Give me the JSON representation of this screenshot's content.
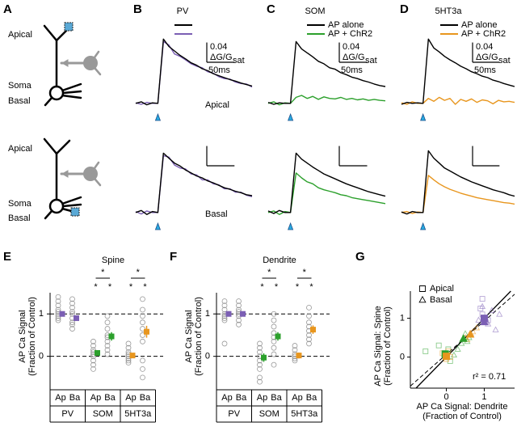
{
  "panel_labels": [
    "A",
    "B",
    "C",
    "D",
    "E",
    "F",
    "G"
  ],
  "schematic": {
    "labels": [
      "Apical",
      "Soma",
      "Basal",
      "Apical",
      "Soma",
      "Basal"
    ]
  },
  "chart_data": [
    {
      "type": "line",
      "title": "PV",
      "region_label": "Apical",
      "stimulus": 0,
      "xlim": [
        -40,
        170
      ],
      "ylim": [
        -0.02,
        0.16
      ],
      "x": [
        -40,
        -30,
        -20,
        -10,
        0,
        10,
        20,
        30,
        40,
        50,
        60,
        70,
        80,
        90,
        100,
        110,
        120,
        130,
        140,
        150,
        160,
        170
      ],
      "series": [
        {
          "color": "#000000",
          "values": [
            0,
            0.003,
            -0.003,
            0.001,
            0,
            0.13,
            0.115,
            0.106,
            0.097,
            0.09,
            0.082,
            0.077,
            0.07,
            0.066,
            0.06,
            0.056,
            0.052,
            0.048,
            0.045,
            0.041,
            0.038,
            0.035
          ]
        },
        {
          "color": "#7b5fb4",
          "values": [
            0.001,
            -0.002,
            0.002,
            0,
            0,
            0.125,
            0.118,
            0.1,
            0.095,
            0.088,
            0.08,
            0.075,
            0.072,
            0.064,
            0.061,
            0.054,
            0.05,
            0.049,
            0.043,
            0.04,
            0.039,
            0.033
          ]
        }
      ],
      "scalebar": {
        "y": {
          "value": 0.04,
          "label": "0.04"
        },
        "x": {
          "value": 50,
          "label": "50ms"
        },
        "unit": "ΔG/G",
        "unit_sub": "sat"
      }
    },
    {
      "type": "line",
      "region_label": "Basal",
      "stimulus": 0,
      "xlim": [
        -40,
        170
      ],
      "ylim": [
        -0.02,
        0.16
      ],
      "x": [
        -40,
        -30,
        -20,
        -10,
        0,
        10,
        20,
        30,
        40,
        50,
        60,
        70,
        80,
        90,
        100,
        110,
        120,
        130,
        140,
        150,
        160,
        170
      ],
      "series": [
        {
          "color": "#000000",
          "values": [
            0,
            0.004,
            -0.004,
            0.002,
            0,
            0.12,
            0.11,
            0.1,
            0.094,
            0.086,
            0.08,
            0.074,
            0.07,
            0.064,
            0.06,
            0.055,
            0.05,
            0.047,
            0.043,
            0.04,
            0.036,
            0.034
          ]
        },
        {
          "color": "#7b5fb4",
          "values": [
            0.002,
            -0.003,
            0.003,
            0,
            0,
            0.115,
            0.112,
            0.096,
            0.09,
            0.088,
            0.078,
            0.076,
            0.066,
            0.066,
            0.058,
            0.056,
            0.048,
            0.048,
            0.041,
            0.041,
            0.035,
            0.032
          ]
        }
      ],
      "scalebar": {
        "y": 0.04,
        "x": 50
      }
    },
    {
      "type": "line",
      "title": "SOM",
      "stimulus": 0,
      "xlim": [
        -40,
        170
      ],
      "ylim": [
        -0.02,
        0.16
      ],
      "x": [
        -40,
        -30,
        -20,
        -10,
        0,
        10,
        20,
        30,
        40,
        50,
        60,
        70,
        80,
        90,
        100,
        110,
        120,
        130,
        140,
        150,
        160,
        170
      ],
      "series": [
        {
          "name": "AP alone",
          "color": "#000000",
          "values": [
            0.002,
            -0.002,
            0.001,
            0,
            0,
            0.125,
            0.11,
            0.102,
            0.094,
            0.085,
            0.08,
            0.072,
            0.069,
            0.062,
            0.058,
            0.053,
            0.05,
            0.046,
            0.043,
            0.039,
            0.036,
            0.034
          ]
        },
        {
          "name": "AP + ChR2",
          "color": "#2ca02c",
          "values": [
            0,
            0.003,
            -0.003,
            0.001,
            0,
            0.012,
            0.016,
            0.01,
            0.014,
            0.008,
            0.013,
            0.01,
            0.009,
            0.012,
            0.008,
            0.01,
            0.007,
            0.009,
            0.006,
            0.008,
            0.006,
            0.005
          ]
        }
      ],
      "scalebar": {
        "y": {
          "value": 0.04,
          "label": "0.04"
        },
        "x": {
          "value": 50,
          "label": "50ms"
        },
        "unit": "ΔG/G",
        "unit_sub": "sat"
      }
    },
    {
      "type": "line",
      "stimulus": 0,
      "xlim": [
        -40,
        170
      ],
      "ylim": [
        -0.02,
        0.16
      ],
      "x": [
        -40,
        -30,
        -20,
        -10,
        0,
        10,
        20,
        30,
        40,
        50,
        60,
        70,
        80,
        90,
        100,
        110,
        120,
        130,
        140,
        150,
        160,
        170
      ],
      "series": [
        {
          "color": "#000000",
          "values": [
            0.003,
            -0.002,
            0.004,
            0,
            0,
            0.12,
            0.108,
            0.1,
            0.092,
            0.085,
            0.078,
            0.073,
            0.068,
            0.063,
            0.058,
            0.054,
            0.05,
            0.046,
            0.042,
            0.039,
            0.036,
            0.033
          ]
        },
        {
          "color": "#2ca02c",
          "values": [
            0,
            0.003,
            -0.004,
            0.002,
            0,
            0.08,
            0.07,
            0.062,
            0.058,
            0.05,
            0.046,
            0.043,
            0.04,
            0.036,
            0.034,
            0.03,
            0.028,
            0.026,
            0.024,
            0.022,
            0.02,
            0.018
          ]
        }
      ],
      "scalebar": {
        "y": 0.04,
        "x": 50
      }
    },
    {
      "type": "line",
      "title": "5HT3a",
      "stimulus": 0,
      "xlim": [
        -40,
        170
      ],
      "ylim": [
        -0.02,
        0.16
      ],
      "x": [
        -40,
        -30,
        -20,
        -10,
        0,
        10,
        20,
        30,
        40,
        50,
        60,
        70,
        80,
        90,
        100,
        110,
        120,
        130,
        140,
        150,
        160,
        170
      ],
      "series": [
        {
          "name": "AP alone",
          "color": "#000000",
          "values": [
            -0.002,
            0.002,
            0,
            0.001,
            0,
            0.13,
            0.112,
            0.104,
            0.095,
            0.088,
            0.082,
            0.075,
            0.07,
            0.064,
            0.06,
            0.055,
            0.052,
            0.047,
            0.044,
            0.04,
            0.037,
            0.034
          ]
        },
        {
          "name": "AP + ChR2",
          "color": "#e8961e",
          "values": [
            0.001,
            -0.002,
            0.003,
            0,
            0,
            0.01,
            0.004,
            0.012,
            0.006,
            0.01,
            -0.002,
            0.008,
            0.004,
            0.009,
            0.002,
            0.007,
            0.005,
            -0.001,
            0.006,
            0.003,
            0.004,
            0.002
          ]
        }
      ],
      "scalebar": {
        "y": {
          "value": 0.04,
          "label": "0.04"
        },
        "x": {
          "value": 50,
          "label": "50ms"
        },
        "unit": "ΔG/G",
        "unit_sub": "sat"
      }
    },
    {
      "type": "line",
      "stimulus": 0,
      "xlim": [
        -40,
        170
      ],
      "ylim": [
        -0.02,
        0.16
      ],
      "x": [
        -40,
        -30,
        -20,
        -10,
        0,
        10,
        20,
        30,
        40,
        50,
        60,
        70,
        80,
        90,
        100,
        110,
        120,
        130,
        140,
        150,
        160,
        170
      ],
      "series": [
        {
          "color": "#000000",
          "values": [
            0.001,
            -0.003,
            0.002,
            0,
            0,
            0.125,
            0.11,
            0.1,
            0.09,
            0.084,
            0.078,
            0.072,
            0.067,
            0.062,
            0.058,
            0.054,
            0.05,
            0.046,
            0.043,
            0.04,
            0.036,
            0.033
          ]
        },
        {
          "color": "#e8961e",
          "values": [
            0,
            0.002,
            -0.002,
            0.001,
            0,
            0.075,
            0.066,
            0.058,
            0.052,
            0.047,
            0.043,
            0.039,
            0.036,
            0.033,
            0.03,
            0.028,
            0.026,
            0.024,
            0.022,
            0.02,
            0.019,
            0.017
          ]
        }
      ],
      "scalebar": {
        "y": 0.04,
        "x": 50
      }
    },
    {
      "type": "strip",
      "title": "Spine",
      "ylabel": [
        "AP Ca Signal",
        "(Fraction of Control)"
      ],
      "ylim": [
        -0.75,
        1.5
      ],
      "yticks": [
        0,
        1
      ],
      "categories": [
        "Ap",
        "Ba",
        "Ap",
        "Ba",
        "Ap",
        "Ba"
      ],
      "groups": [
        "PV",
        "SOM",
        "5HT3a"
      ],
      "group_colors": [
        "#7b5fb4",
        "#2ca02c",
        "#e8961e"
      ],
      "values": [
        1.0,
        0.9,
        0.08,
        0.47,
        0.02,
        0.58
      ],
      "errors": [
        0.06,
        0.06,
        0.06,
        0.1,
        0.05,
        0.14
      ],
      "points": [
        [
          1.4,
          1.3,
          1.2,
          1.1,
          1.05,
          1.0,
          0.95,
          0.9,
          0.85
        ],
        [
          1.35,
          1.25,
          1.15,
          1.05,
          1.0,
          0.9,
          0.8,
          0.75,
          0.65
        ],
        [
          0.35,
          0.25,
          0.15,
          0.1,
          0.05,
          0,
          -0.1,
          -0.2,
          -0.3
        ],
        [
          0.95,
          0.8,
          0.65,
          0.5,
          0.45,
          0.35,
          0.25,
          0.15,
          0.05
        ],
        [
          0.3,
          0.2,
          0.1,
          0.05,
          0,
          -0.05,
          -0.1,
          -0.15
        ],
        [
          1.35,
          1.1,
          0.95,
          0.8,
          0.65,
          0.5,
          0.35,
          -0.1,
          -0.3,
          -0.5
        ]
      ],
      "significance": {
        "pairs": [
          "*",
          "*"
        ],
        "each": [
          "*",
          "*",
          "*",
          "*"
        ]
      }
    },
    {
      "type": "strip",
      "title": "Dendrite",
      "ylabel": [
        "AP Ca Signal",
        "(Fraction of Control)"
      ],
      "ylim": [
        -0.75,
        1.5
      ],
      "yticks": [
        0,
        1
      ],
      "categories": [
        "Ap",
        "Ba",
        "Ap",
        "Ba",
        "Ap",
        "Ba"
      ],
      "groups": [
        "PV",
        "SOM",
        "5HT3a"
      ],
      "group_colors": [
        "#7b5fb4",
        "#2ca02c",
        "#e8961e"
      ],
      "values": [
        1.0,
        1.0,
        -0.03,
        0.47,
        0.02,
        0.63
      ],
      "errors": [
        0.05,
        0.05,
        0.1,
        0.1,
        0.07,
        0.1
      ],
      "points": [
        [
          1.3,
          1.2,
          1.1,
          1.0,
          0.95,
          0.9,
          0.85,
          0.3
        ],
        [
          1.3,
          1.2,
          1.1,
          1.05,
          1.0,
          0.95,
          0.85,
          0.75
        ],
        [
          0.3,
          0.2,
          0.1,
          0,
          -0.1,
          -0.2,
          -0.3,
          -0.5,
          -0.6
        ],
        [
          1.0,
          0.85,
          0.7,
          0.55,
          0.45,
          0.35,
          0.2,
          0.05,
          -0.2
        ],
        [
          0.25,
          0.15,
          0.05,
          0,
          -0.05,
          -0.1
        ],
        [
          1.15,
          0.95,
          0.8,
          0.7,
          0.6,
          0.5,
          0.4,
          0.3
        ]
      ],
      "significance": {
        "pairs": [
          "*",
          "*"
        ],
        "each": [
          "*",
          "*",
          "*",
          "*"
        ]
      }
    },
    {
      "type": "scatter",
      "xlabel": [
        "AP Ca Signal: Dendrite",
        "(Fraction of Control)"
      ],
      "ylabel": [
        "AP Ca Signal: Spine",
        "(Fraction of Control)"
      ],
      "xlim": [
        -0.95,
        1.8
      ],
      "ylim": [
        -0.8,
        1.7
      ],
      "xticks": [
        0,
        1
      ],
      "yticks": [
        0,
        1
      ],
      "legend": [
        {
          "label": "Apical",
          "marker": "square"
        },
        {
          "label": "Basal",
          "marker": "triangle"
        }
      ],
      "annotation": "r² = 0.71",
      "fit": {
        "slope": 0.86,
        "intercept": 0.07
      },
      "series": [
        {
          "color": "#7b5fb4",
          "marker": "square",
          "x": [
            1.0,
            0.95,
            1.05,
            0.9,
            1.1,
            0.95
          ],
          "y": [
            1.0,
            1.1,
            0.9,
            1.25,
            0.95,
            1.5
          ],
          "mean_x": 1.0,
          "mean_y": 1.0
        },
        {
          "color": "#7b5fb4",
          "marker": "triangle",
          "x": [
            1.1,
            1.2,
            0.85,
            1.3,
            0.95,
            1.4
          ],
          "y": [
            0.85,
            1.2,
            0.95,
            0.7,
            1.3,
            1.1
          ],
          "mean_x": 1.0,
          "mean_y": 0.9
        },
        {
          "color": "#2ca02c",
          "marker": "square",
          "x": [
            -0.05,
            0.1,
            -0.2,
            0.05,
            -0.55
          ],
          "y": [
            0.05,
            -0.1,
            0.3,
            0.2,
            0.15
          ],
          "mean_x": -0.03,
          "mean_y": 0.08
        },
        {
          "color": "#2ca02c",
          "marker": "triangle",
          "x": [
            0.4,
            0.5,
            0.3,
            0.6,
            0.2,
            0.55
          ],
          "y": [
            0.35,
            0.6,
            0.2,
            0.5,
            0.05,
            0.4
          ],
          "mean_x": 0.45,
          "mean_y": 0.47
        },
        {
          "color": "#e8961e",
          "marker": "square",
          "x": [
            0.0,
            -0.1,
            0.1,
            0.05
          ],
          "y": [
            -0.05,
            0.1,
            0.0,
            0.15
          ],
          "mean_x": 0.0,
          "mean_y": 0.02
        },
        {
          "color": "#e8961e",
          "marker": "triangle",
          "x": [
            0.65,
            0.55,
            0.8,
            0.7,
            0.5
          ],
          "y": [
            0.6,
            0.45,
            0.75,
            0.65,
            0.5
          ],
          "mean_x": 0.63,
          "mean_y": 0.58
        }
      ]
    }
  ]
}
